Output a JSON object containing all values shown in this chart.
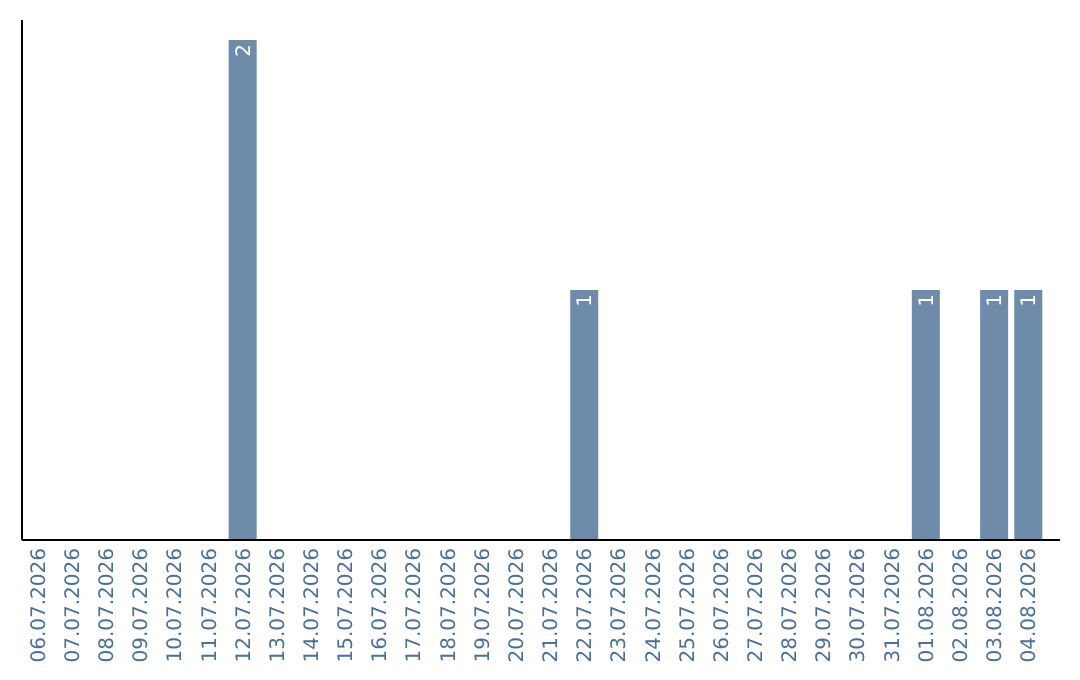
{
  "chart_data": {
    "type": "bar",
    "categories": [
      "06.07.2026",
      "07.07.2026",
      "08.07.2026",
      "09.07.2026",
      "10.07.2026",
      "11.07.2026",
      "12.07.2026",
      "13.07.2026",
      "14.07.2026",
      "15.07.2026",
      "16.07.2026",
      "17.07.2026",
      "18.07.2026",
      "19.07.2026",
      "20.07.2026",
      "21.07.2026",
      "22.07.2026",
      "23.07.2026",
      "24.07.2026",
      "25.07.2026",
      "26.07.2026",
      "27.07.2026",
      "28.07.2026",
      "29.07.2026",
      "30.07.2026",
      "31.07.2026",
      "01.08.2026",
      "02.08.2026",
      "03.08.2026",
      "04.08.2026"
    ],
    "values": [
      0,
      0,
      0,
      0,
      0,
      0,
      2,
      0,
      0,
      0,
      0,
      0,
      0,
      0,
      0,
      0,
      1,
      0,
      0,
      0,
      0,
      0,
      0,
      0,
      0,
      0,
      1,
      0,
      1,
      1
    ],
    "value_labels": [
      null,
      null,
      null,
      null,
      null,
      null,
      "2",
      null,
      null,
      null,
      null,
      null,
      null,
      null,
      null,
      null,
      "1",
      null,
      null,
      null,
      null,
      null,
      null,
      null,
      null,
      null,
      "1",
      null,
      "1",
      "1"
    ],
    "color": "#6e8caa",
    "ylim": [
      0,
      2.08
    ],
    "tick_labels": "x"
  }
}
